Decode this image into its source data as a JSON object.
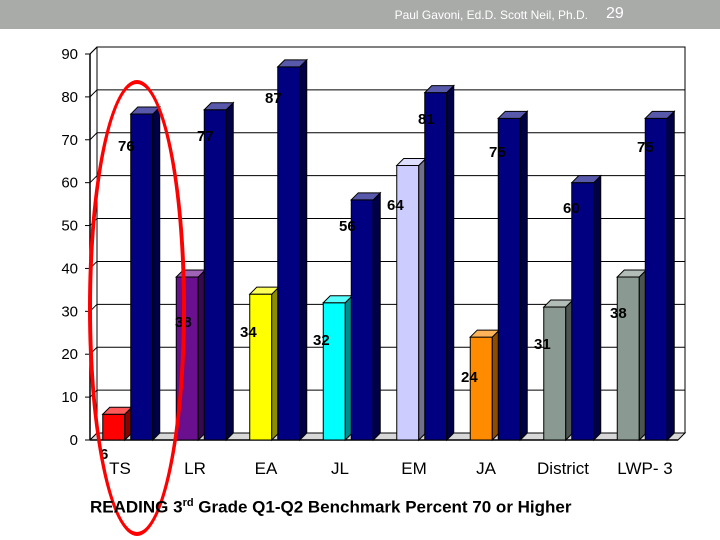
{
  "header": {
    "author": "Paul Gavoni, Ed.D. Scott Neil, Ph.D.",
    "page_number": "29"
  },
  "caption": {
    "prefix": "READING 3",
    "superscript": "rd",
    "suffix": " Grade Q1-Q2 Benchmark Percent 70 or Higher"
  },
  "chart_data": {
    "type": "bar",
    "title": "",
    "xlabel": "",
    "ylabel": "",
    "ylim": [
      0,
      90
    ],
    "yticks": [
      0,
      10,
      20,
      30,
      40,
      50,
      60,
      70,
      80,
      90
    ],
    "categories": [
      "TS",
      "LR",
      "EA",
      "JL",
      "EM",
      "JA",
      "District",
      "LWP- 3"
    ],
    "grid": true,
    "series": [
      {
        "values": [
          6,
          38,
          34,
          32,
          64,
          24,
          31,
          38
        ],
        "colors": [
          "#ff0000",
          "#6a0f8e",
          "#ffff00",
          "#00ffff",
          "#ccccff",
          "#ff8c00",
          "#8a9a92",
          "#8a9a92"
        ]
      },
      {
        "values": [
          76,
          77,
          87,
          56,
          81,
          75,
          60,
          75
        ],
        "colors": [
          "#000080",
          "#000080",
          "#000080",
          "#000080",
          "#000080",
          "#000080",
          "#000080",
          "#000080"
        ]
      }
    ],
    "labels": {
      "series1": [
        "6",
        "38",
        "34",
        "32",
        "64",
        "24",
        "31",
        "38"
      ],
      "series2": [
        "76",
        "77",
        "87",
        "56",
        "81",
        "75",
        "60",
        "75"
      ]
    }
  }
}
